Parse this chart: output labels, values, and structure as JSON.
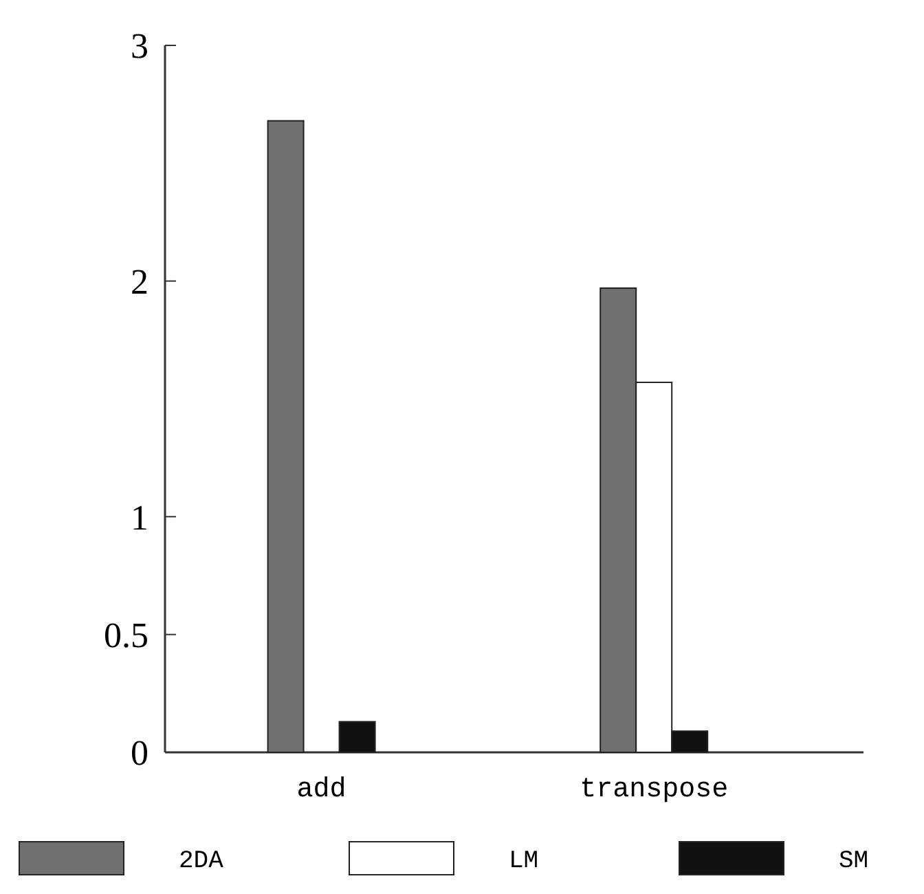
{
  "chart_data": {
    "type": "bar",
    "categories": [
      "add",
      "transpose"
    ],
    "series": [
      {
        "name": "2DA",
        "color": "#707070",
        "values": [
          2.68,
          1.97
        ]
      },
      {
        "name": "LM",
        "color": "#ffffff",
        "values": [
          null,
          1.57
        ]
      },
      {
        "name": "SM",
        "color": "#111111",
        "values": [
          0.13,
          0.09
        ]
      }
    ],
    "ylim": [
      0,
      3
    ],
    "yticks": [
      0,
      0.5,
      1,
      2,
      3
    ],
    "grid": false,
    "legend": "bottom"
  }
}
